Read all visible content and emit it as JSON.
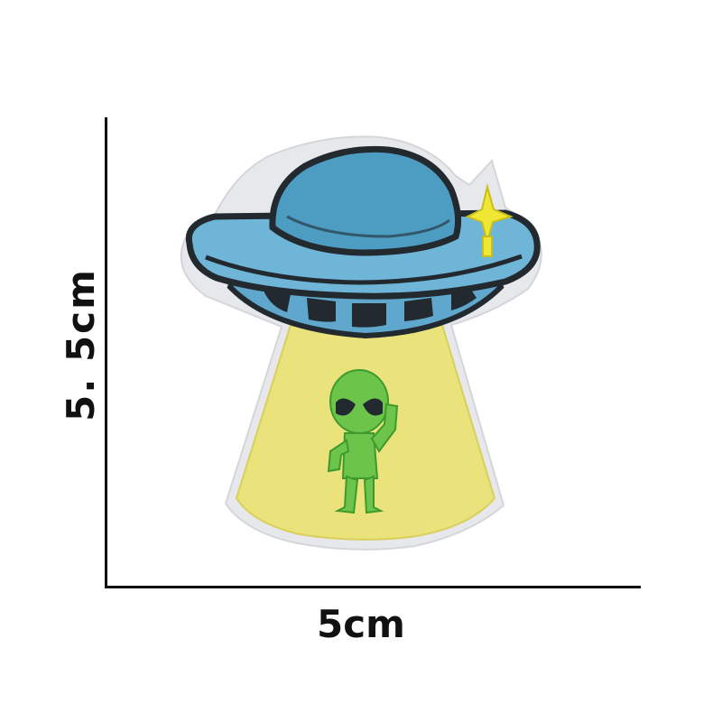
{
  "dimensions": {
    "width_label": "5cm",
    "height_label": "5. 5cm"
  },
  "patch": {
    "colors": {
      "felt_border": "#e7e8ec",
      "dome": "#4d9cc1",
      "saucer_band": "#6fb5d8",
      "saucer_bottom": "#5fa7cc",
      "outline": "#222a30",
      "beam": "#eae27a",
      "alien": "#6cc54a",
      "sparkle": "#f0e635"
    }
  }
}
